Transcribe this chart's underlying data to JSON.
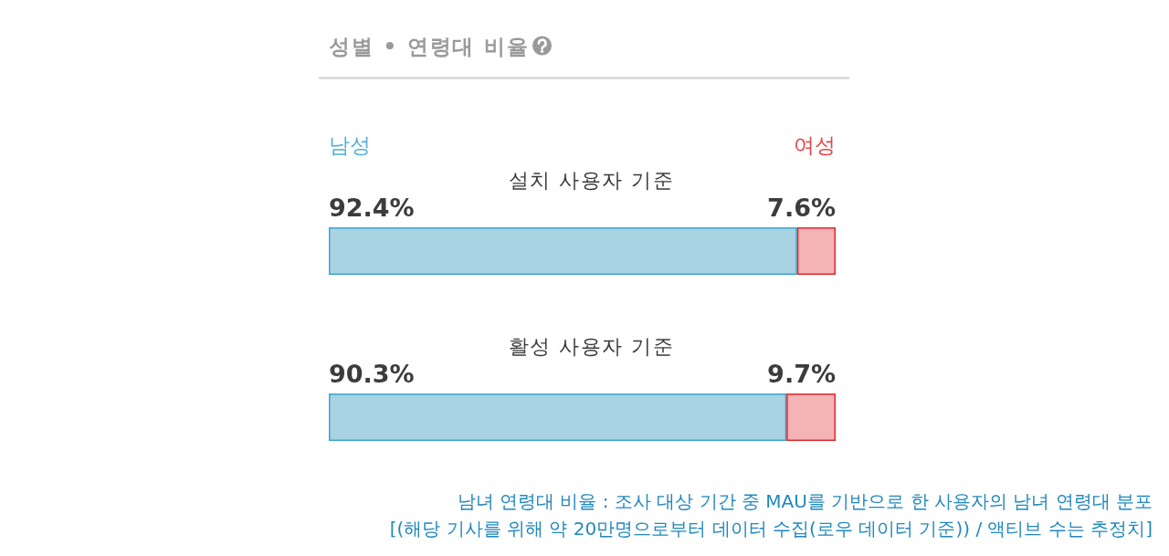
{
  "chart_data": {
    "type": "bar",
    "orientation": "horizontal",
    "stacked": true,
    "title": "성별 • 연령대 비율",
    "categories": [
      "설치 사용자 기준",
      "활성 사용자 기준"
    ],
    "series": [
      {
        "name": "남성",
        "color": "#a9d3e3",
        "values": [
          92.4,
          90.3
        ],
        "value_labels": [
          "92.4%",
          "90.3%"
        ]
      },
      {
        "name": "여성",
        "color": "#f4b3b4",
        "values": [
          7.6,
          9.7
        ],
        "value_labels": [
          "7.6%",
          "9.7%"
        ]
      }
    ],
    "legend": "top",
    "annotations": [
      "남녀 연령대 비율 : 조사 대상 기간 중 MAU를 기반으로 한 사용자의 남녀 연령대 분포",
      "[(해당 기사를 위해 약 20만명으로부터 데이터 수집(로우 데이터 기준)) / 액티브 수는 추정치]"
    ]
  }
}
